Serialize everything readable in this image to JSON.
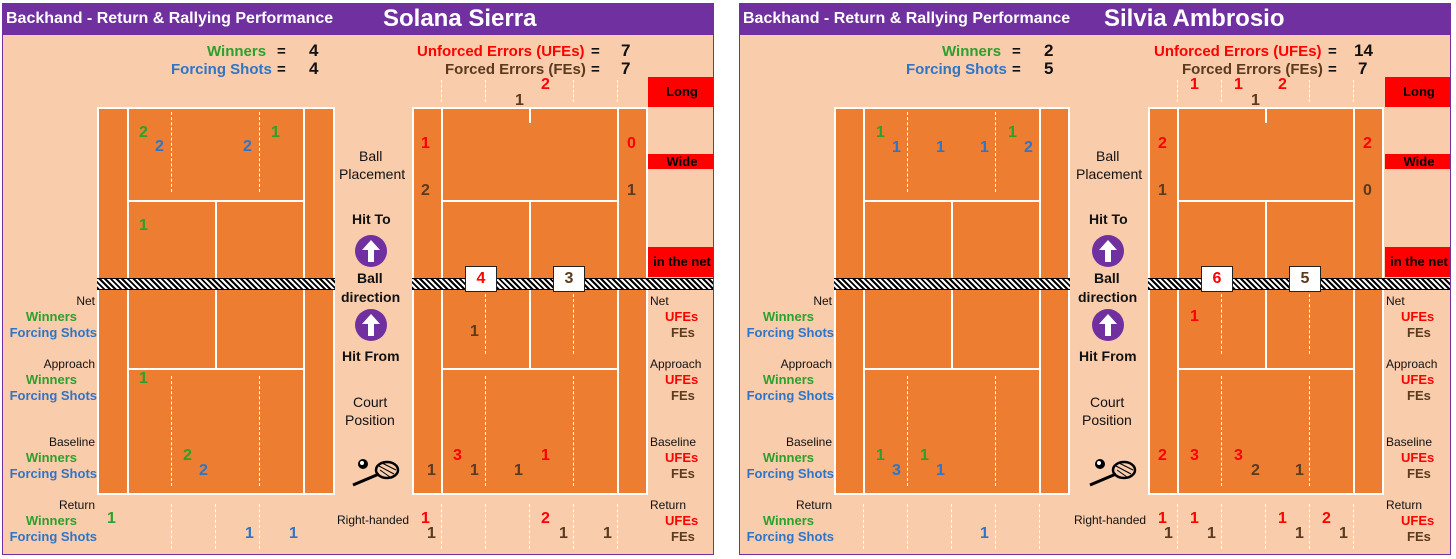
{
  "chart_data": [
    {
      "type": "table",
      "header_title": "Backhand - Return & Rallying Performance",
      "player": "Solana Sierra",
      "summary": {
        "winners_label": "Winners",
        "winners": "4",
        "forcing_label": "Forcing Shots",
        "forcing": "4",
        "ufe_label": "Unforced Errors (UFEs)",
        "ufe": "7",
        "fe_label": "Forced Errors (FEs)",
        "fe": "7"
      },
      "out_counts": {
        "long_ufe": "2",
        "long_fe": "1",
        "wide_left_ufe": "1",
        "wide_left_fe": "2",
        "wide_right_ufe": "0",
        "wide_right_fe": "1",
        "net_left": "4",
        "net_right": "3"
      },
      "placement_labels": {
        "cell_a_w": "2",
        "cell_a_f": "2",
        "cell_b_w": "1",
        "cell_b_f": "2",
        "service_w": "1"
      },
      "hit_from": {
        "net": {
          "fe": "1"
        },
        "approach": {
          "winners": "1"
        },
        "baseline": {
          "winners": "2",
          "forcing": "2",
          "ufe_a": "3",
          "ufe_b": "1",
          "fe_a": "1",
          "fe_b": "1",
          "fe_c": "1"
        },
        "return": {
          "winners": "1",
          "forcing_a": "1",
          "forcing_b": "1",
          "ufe_a": "1",
          "ufe_b": "2",
          "fe_a": "1",
          "fe_b": "1",
          "fe_c": "1"
        }
      }
    },
    {
      "type": "table",
      "header_title": "Backhand - Return & Rallying Performance",
      "player": "Silvia Ambrosio",
      "summary": {
        "winners_label": "Winners",
        "winners": "2",
        "forcing_label": "Forcing Shots",
        "forcing": "5",
        "ufe_label": "Unforced Errors (UFEs)",
        "ufe": "14",
        "fe_label": "Forced Errors (FEs)",
        "fe": "7"
      },
      "out_counts": {
        "long_ufe_a": "1",
        "long_ufe_b": "1",
        "long_ufe_c": "2",
        "long_fe": "1",
        "wide_left_ufe": "2",
        "wide_left_fe": "1",
        "wide_right_ufe": "2",
        "wide_right_fe": "0",
        "net_left": "6",
        "net_right": "5"
      },
      "placement_labels": {
        "cell_a_w": "1",
        "cell_a_f1": "1",
        "cell_a_f2": "1",
        "cell_b_w": "1",
        "cell_b_f1": "1",
        "cell_b_f2": "2"
      },
      "hit_from": {
        "net": {
          "ufe": "1"
        },
        "baseline": {
          "winners_a": "1",
          "winners_b": "1",
          "forcing_a": "3",
          "forcing_b": "1",
          "ufe_a": "2",
          "ufe_b": "3",
          "ufe_c": "3",
          "fe_a": "2",
          "fe_b": "1"
        },
        "return": {
          "forcing": "1",
          "ufe_a": "1",
          "ufe_b": "1",
          "ufe_c": "1",
          "ufe_d": "2",
          "fe_a": "1",
          "fe_b": "1",
          "fe_c": "1",
          "fe_d": "1"
        }
      }
    }
  ],
  "labels": {
    "ball_placement": "Ball Placement",
    "ball_placement_1": "Ball",
    "ball_placement_2": "Placement",
    "hit_to": "Hit To",
    "ball_direction_1": "Ball",
    "ball_direction_2": "direction",
    "hit_from": "Hit From",
    "court_position_1": "Court",
    "court_position_2": "Position",
    "right_handed": "Right-handed",
    "net": "Net",
    "approach": "Approach",
    "baseline": "Baseline",
    "return": "Return",
    "winners": "Winners",
    "forcing": "Forcing Shots",
    "ufes": "UFEs",
    "fes": "FEs",
    "long": "Long",
    "wide": "Wide",
    "in_the_net": "in the net",
    "eq": "=",
    "net_text": "XXXXXXXXXXXXXXXXXXXXXXXXXXXXXXXXXXXXXXXX"
  },
  "colors": {
    "header": "#7030a0",
    "panel": "#f9ccac",
    "court": "#ed7d31",
    "winners": "#2ca02c",
    "forcing": "#2e75c7",
    "ufe": "#ff0000",
    "fe": "#5b3a1e",
    "tag": "#ff0000"
  },
  "icons": [
    "arrow-up-icon",
    "arrow-up-icon",
    "tennis-racket-icon"
  ]
}
